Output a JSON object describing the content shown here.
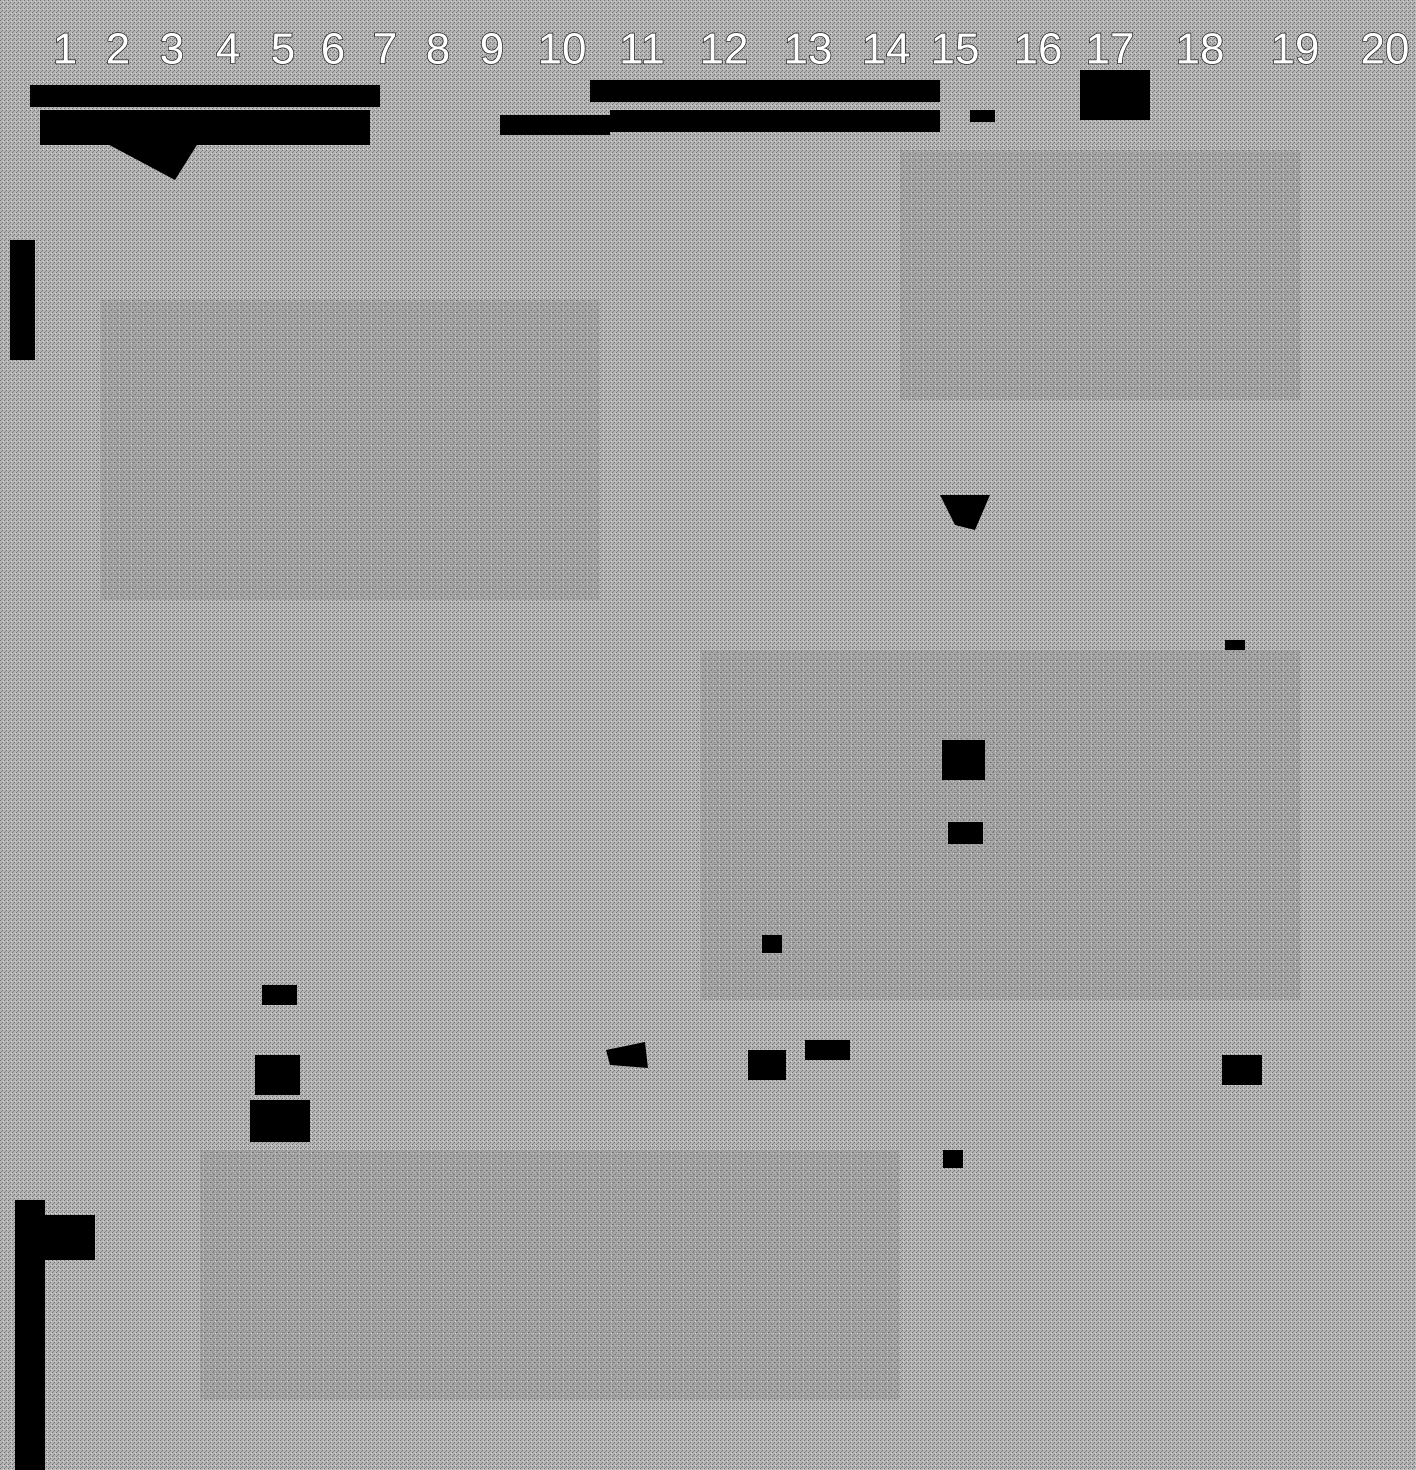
{
  "lanes": {
    "labels": [
      "1",
      "2",
      "3",
      "4",
      "5",
      "6",
      "7",
      "8",
      "9",
      "10",
      "11",
      "12",
      "13",
      "14",
      "15",
      "16",
      "17",
      "18",
      "19",
      "20"
    ]
  }
}
